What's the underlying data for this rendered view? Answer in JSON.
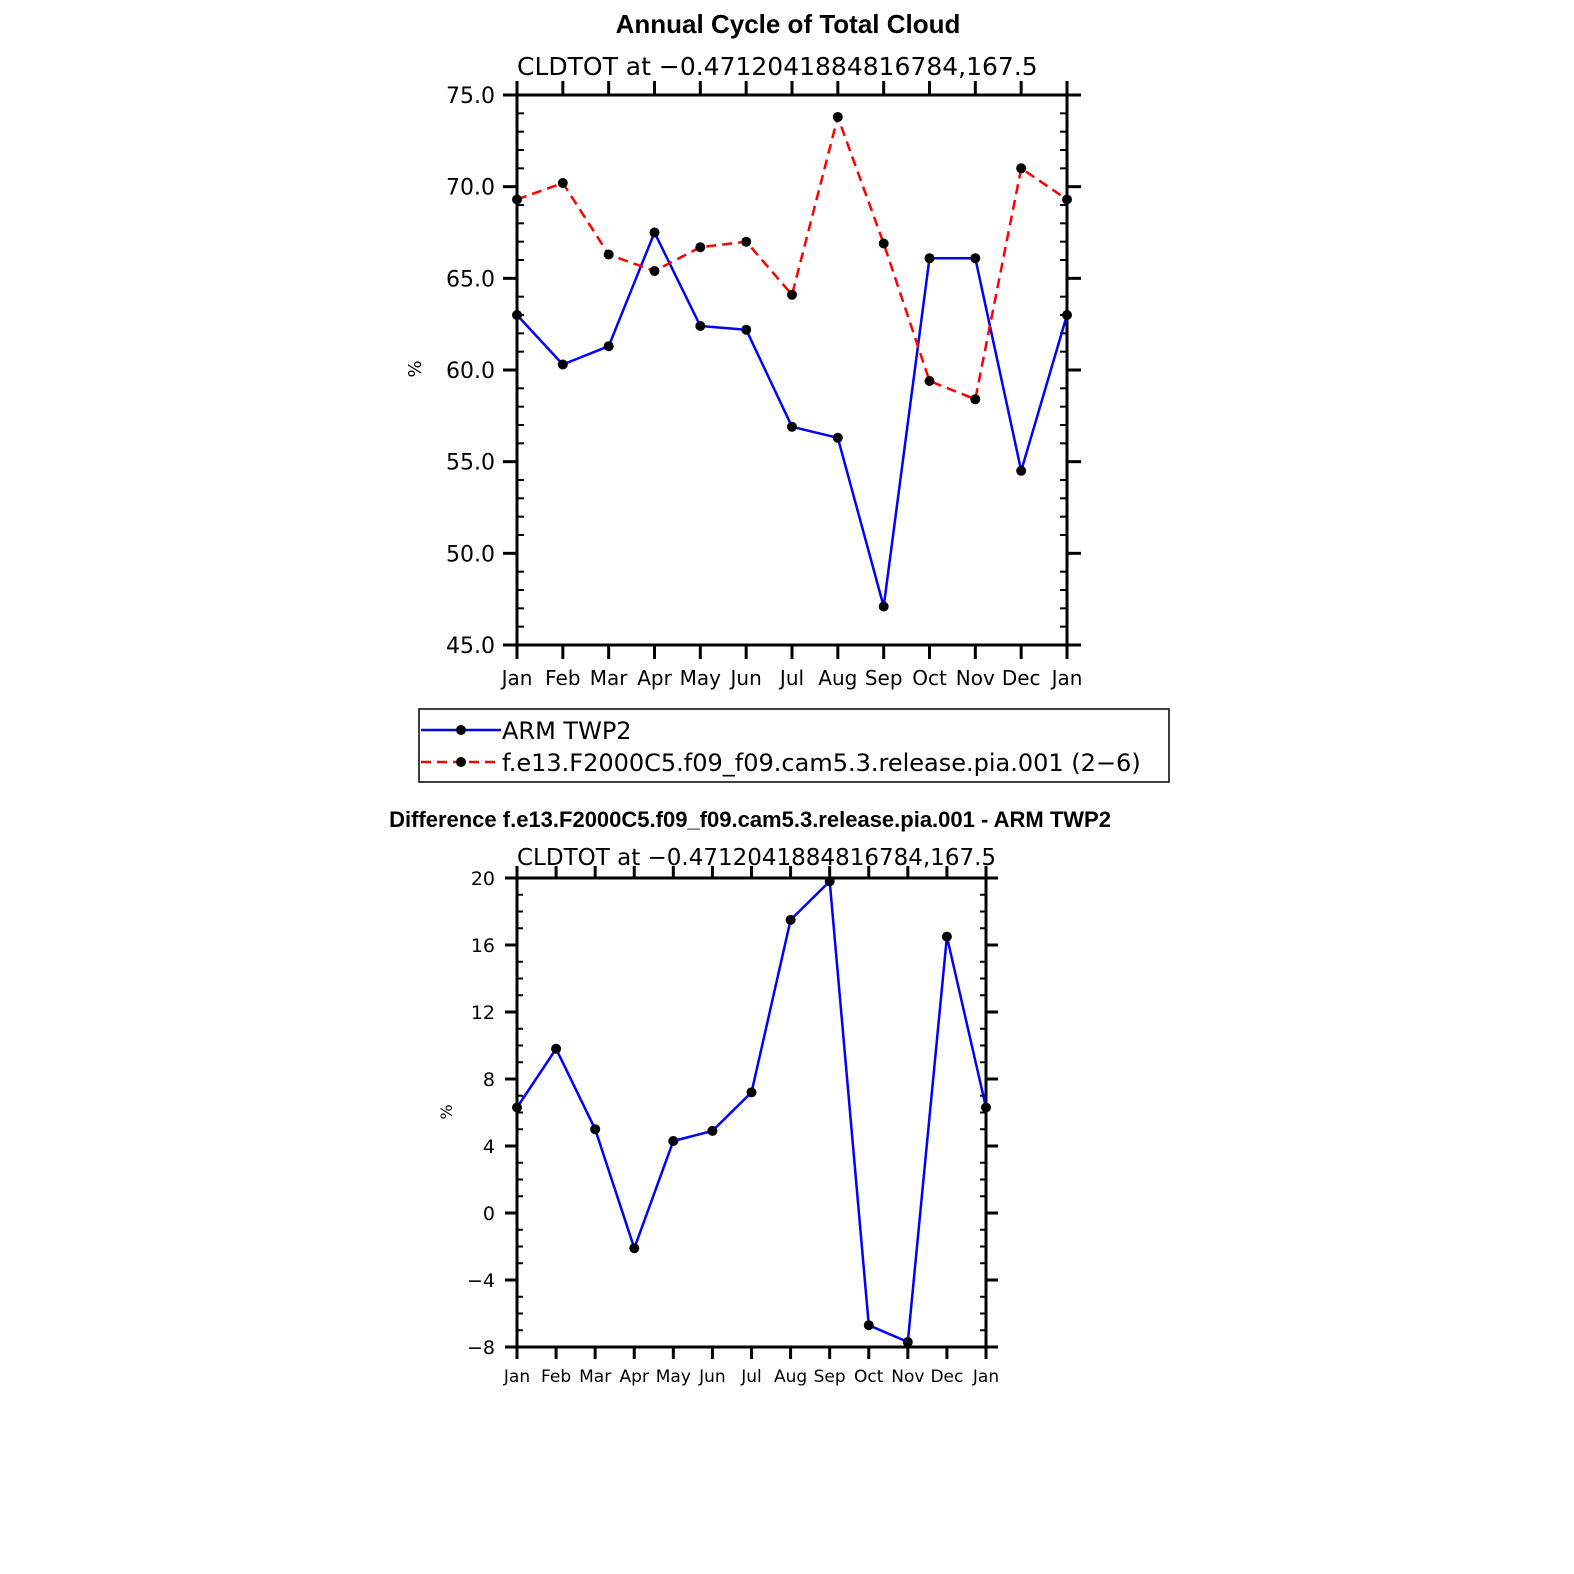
{
  "chart_data": [
    {
      "type": "line",
      "title": "Annual Cycle of Total Cloud",
      "subtitle": "CLDTOT at −0.4712041884816784,167.5",
      "xlabel": "",
      "ylabel": "%",
      "categories": [
        "Jan",
        "Feb",
        "Mar",
        "Apr",
        "May",
        "Jun",
        "Jul",
        "Aug",
        "Sep",
        "Oct",
        "Nov",
        "Dec",
        "Jan"
      ],
      "ylim": [
        45,
        75
      ],
      "yticks": [
        45,
        50,
        55,
        60,
        65,
        70,
        75
      ],
      "ytick_labels": [
        "45.0",
        "50.0",
        "55.0",
        "60.0",
        "65.0",
        "70.0",
        "75.0"
      ],
      "series": [
        {
          "name": "ARM TWP2",
          "color": "#0000ff",
          "dash": "solid",
          "values": [
            63.0,
            60.3,
            61.3,
            67.5,
            62.4,
            62.2,
            56.9,
            56.3,
            47.1,
            66.1,
            66.1,
            54.5,
            63.0
          ]
        },
        {
          "name": "f.e13.F2000C5.f09_f09.cam5.3.release.pia.001 (2−6)",
          "color": "#ff0000",
          "dash": "dashed",
          "values": [
            69.3,
            70.2,
            66.3,
            65.4,
            66.7,
            67.0,
            64.1,
            73.8,
            66.9,
            59.4,
            58.4,
            71.0,
            69.3
          ]
        }
      ],
      "legend": "below"
    },
    {
      "type": "line",
      "title": "Difference f.e13.F2000C5.f09_f09.cam5.3.release.pia.001 - ARM TWP2",
      "subtitle": "CLDTOT at −0.4712041884816784,167.5",
      "xlabel": "",
      "ylabel": "%",
      "categories": [
        "Jan",
        "Feb",
        "Mar",
        "Apr",
        "May",
        "Jun",
        "Jul",
        "Aug",
        "Sep",
        "Oct",
        "Nov",
        "Dec",
        "Jan"
      ],
      "ylim": [
        -8,
        20
      ],
      "yticks": [
        -8,
        -4,
        0,
        4,
        8,
        12,
        16,
        20
      ],
      "ytick_labels": [
        "−8",
        "−4",
        "0",
        "4",
        "8",
        "12",
        "16",
        "20"
      ],
      "series": [
        {
          "name": "Difference",
          "color": "#0000ff",
          "dash": "solid",
          "values": [
            6.3,
            9.8,
            5.0,
            -2.1,
            4.3,
            4.9,
            7.2,
            17.5,
            19.8,
            -6.7,
            -7.7,
            16.5,
            6.3
          ]
        }
      ]
    }
  ]
}
